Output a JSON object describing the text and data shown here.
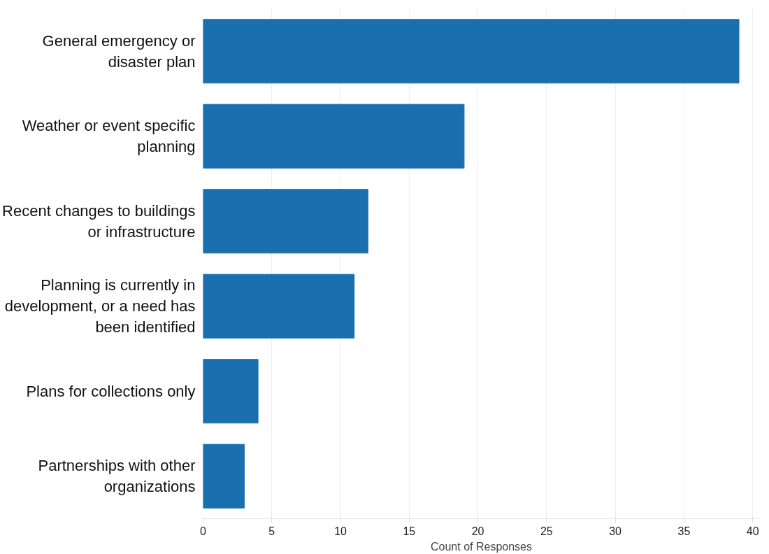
{
  "chart_data": {
    "type": "bar",
    "orientation": "horizontal",
    "xlabel": "Count of Responses",
    "categories": [
      "General emergency or disaster plan",
      "Weather or event specific planning",
      "Recent changes to buildings or infrastructure",
      "Planning is currently in development, or a need has been identified",
      "Plans for collections only",
      "Partnerships with other organizations"
    ],
    "values": [
      39,
      19,
      12,
      11,
      4,
      3
    ],
    "color": "#1a6faf",
    "xlim": [
      0,
      40.5
    ],
    "xticks": [
      0,
      5,
      10,
      15,
      20,
      25,
      30,
      35,
      40
    ],
    "grid": "x"
  }
}
